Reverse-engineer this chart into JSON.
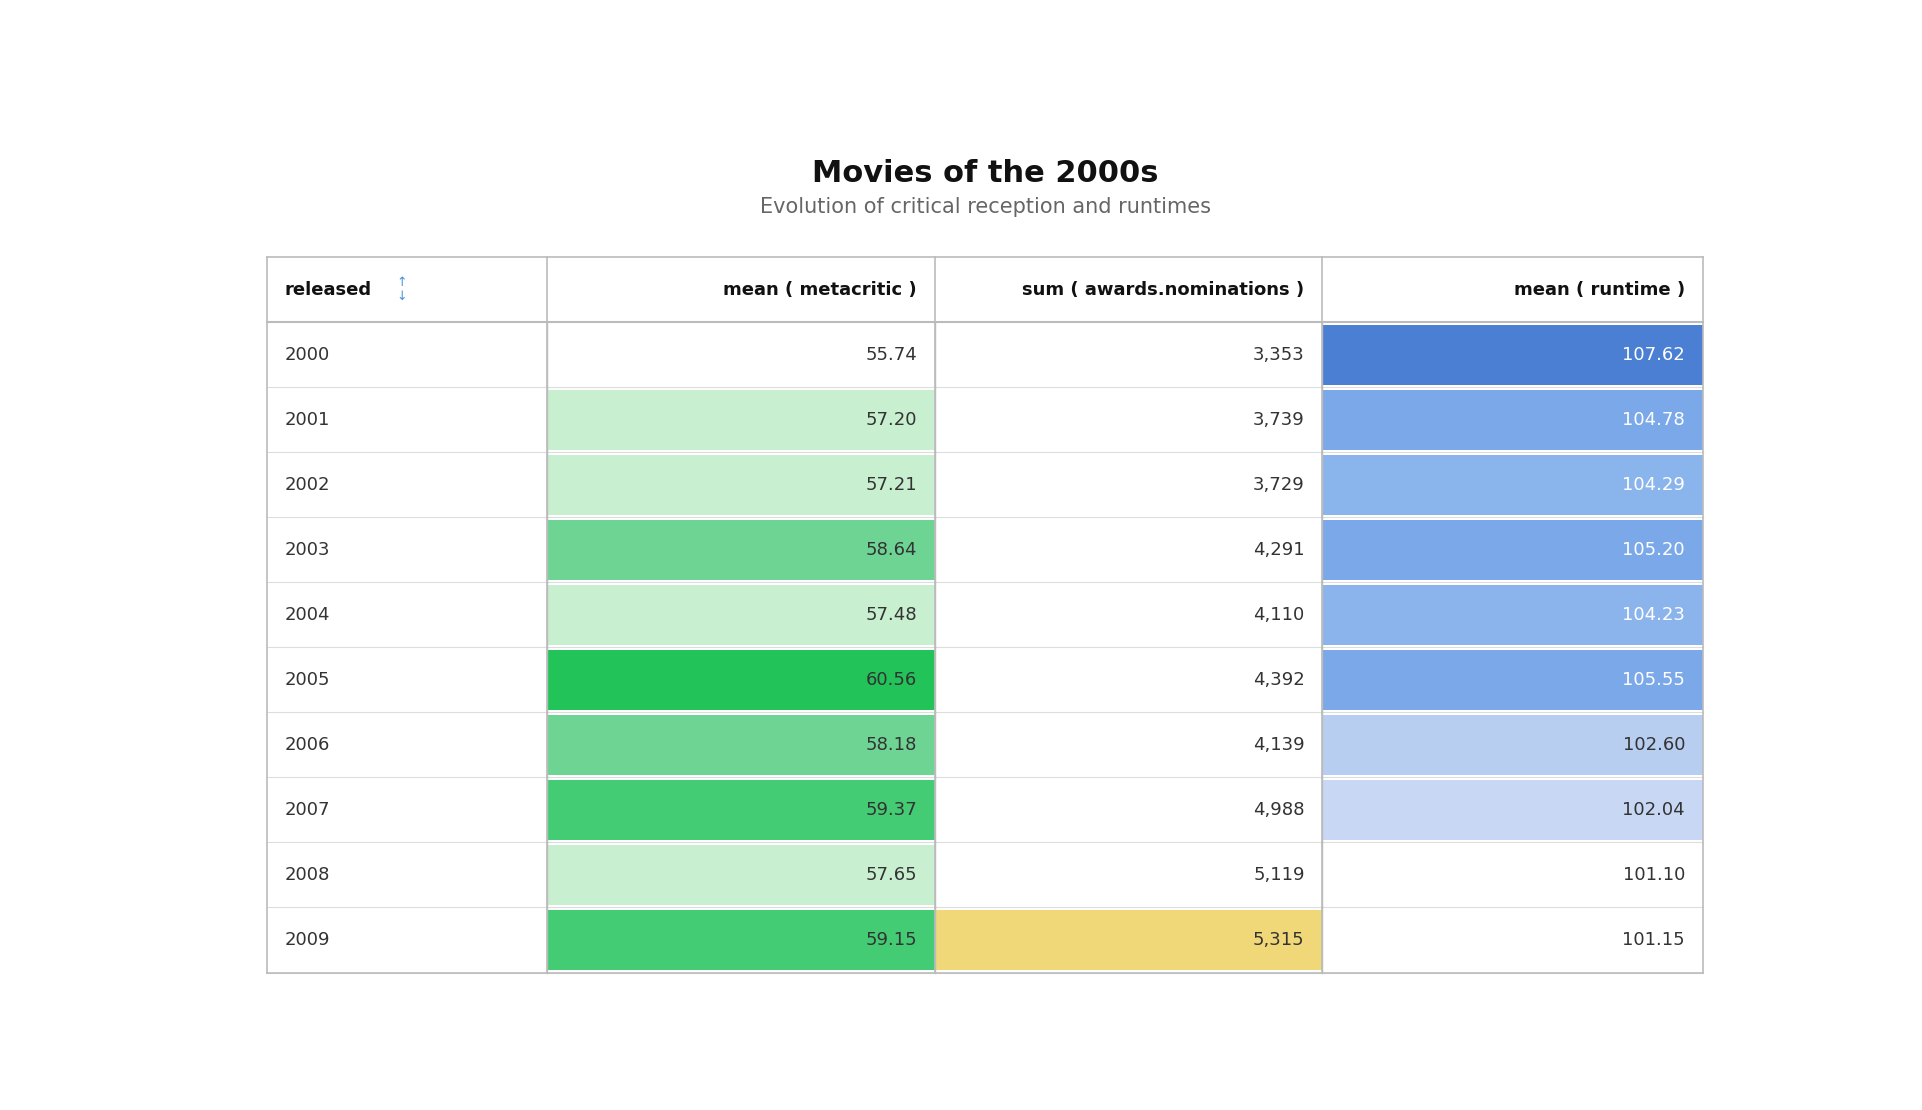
{
  "title": "Movies of the 2000s",
  "subtitle": "Evolution of critical reception and runtimes",
  "columns": [
    "released",
    "mean ( metacritic )",
    "sum ( awards.nominations )",
    "mean ( runtime )"
  ],
  "rows": [
    {
      "year": "2000",
      "metacritic": 55.74,
      "nominations": "3,353",
      "runtime": 107.62
    },
    {
      "year": "2001",
      "metacritic": 57.2,
      "nominations": "3,739",
      "runtime": 104.78
    },
    {
      "year": "2002",
      "metacritic": 57.21,
      "nominations": "3,729",
      "runtime": 104.29
    },
    {
      "year": "2003",
      "metacritic": 58.64,
      "nominations": "4,291",
      "runtime": 105.2
    },
    {
      "year": "2004",
      "metacritic": 57.48,
      "nominations": "4,110",
      "runtime": 104.23
    },
    {
      "year": "2005",
      "metacritic": 60.56,
      "nominations": "4,392",
      "runtime": 105.55
    },
    {
      "year": "2006",
      "metacritic": 58.18,
      "nominations": "4,139",
      "runtime": 102.6
    },
    {
      "year": "2007",
      "metacritic": 59.37,
      "nominations": "4,988",
      "runtime": 102.04
    },
    {
      "year": "2008",
      "metacritic": 57.65,
      "nominations": "5,119",
      "runtime": 101.1
    },
    {
      "year": "2009",
      "metacritic": 59.15,
      "nominations": "5,315",
      "runtime": 101.15
    }
  ],
  "metacritic_bg": [
    "#ffffff",
    "#c8f0d0",
    "#c8f0d0",
    "#6ed494",
    "#c8f0d0",
    "#22c45a",
    "#6ed494",
    "#44cc74",
    "#c8f0d0",
    "#44cc74"
  ],
  "metacritic_text": [
    "#333333",
    "#333333",
    "#333333",
    "#333333",
    "#333333",
    "#333333",
    "#333333",
    "#333333",
    "#333333",
    "#333333"
  ],
  "nominations_bg": [
    "#ffffff",
    "#ffffff",
    "#ffffff",
    "#ffffff",
    "#ffffff",
    "#ffffff",
    "#ffffff",
    "#ffffff",
    "#ffffff",
    "#f0d878"
  ],
  "nominations_text": [
    "#333333",
    "#333333",
    "#333333",
    "#333333",
    "#333333",
    "#333333",
    "#333333",
    "#333333",
    "#333333",
    "#333333"
  ],
  "runtime_bg": [
    "#4a7fd4",
    "#7aa8e8",
    "#8ab4ec",
    "#7aa8e8",
    "#8cb4ec",
    "#7aa8e8",
    "#b8cef0",
    "#c8d8f4",
    "#ffffff",
    "#ffffff"
  ],
  "runtime_text": [
    "#ffffff",
    "#ffffff",
    "#ffffff",
    "#ffffff",
    "#ffffff",
    "#ffffff",
    "#333333",
    "#333333",
    "#333333",
    "#333333"
  ],
  "bg_color": "#ffffff",
  "row_divider_color": "#dddddd",
  "col_divider_color": "#bbbbbb",
  "text_color": "#333333",
  "header_text_color": "#111111",
  "title_fontsize": 22,
  "subtitle_fontsize": 15,
  "data_fontsize": 13,
  "header_fontsize": 13
}
